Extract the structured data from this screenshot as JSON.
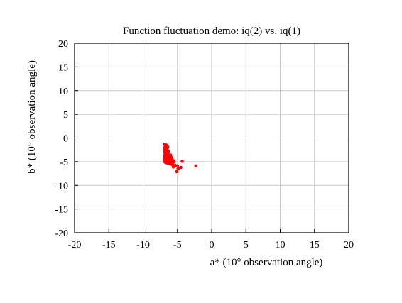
{
  "chart_data": {
    "type": "scatter",
    "title": "Function fluctuation demo: iq(2) vs. iq(1)",
    "xlabel": "a* (10° observation angle)",
    "ylabel": "b* (10° observation angle)",
    "xlim": [
      -20,
      20
    ],
    "ylim": [
      -20,
      20
    ],
    "xticks": [
      "-20",
      "-15",
      "-10",
      "-5",
      "0",
      "5",
      "10",
      "15",
      "20"
    ],
    "yticks": [
      "20",
      "15",
      "10",
      "5",
      "0",
      "-5",
      "-10",
      "-15",
      "-20"
    ],
    "grid": true,
    "legend": "none",
    "marker_color": "#ff0000",
    "series": [
      {
        "x": [
          -6.9,
          -6.8,
          -6.7,
          -6.6,
          -6.5,
          -6.4,
          -6.8,
          -6.7,
          -6.6,
          -6.5,
          -6.9,
          -6.8,
          -6.7,
          -6.6,
          -6.5,
          -6.4,
          -6.3,
          -6.9,
          -6.8,
          -6.7,
          -6.6,
          -6.5,
          -6.4,
          -6.8,
          -6.7,
          -6.6,
          -6.5,
          -6.4,
          -6.9,
          -6.7,
          -6.5,
          -6.3,
          -6.8,
          -6.6,
          -6.4,
          -6.2,
          -6.9,
          -6.7,
          -6.5,
          -6.3,
          -6.1,
          -6.8,
          -6.6,
          -6.4,
          -6.2,
          -6.0,
          -6.7,
          -6.5,
          -6.3,
          -6.1,
          -5.9,
          -6.6,
          -6.4,
          -6.2,
          -6.0,
          -5.8,
          -6.5,
          -6.3,
          -6.1,
          -5.9,
          -5.7,
          -6.4,
          -6.2,
          -6.0,
          -5.8,
          -6.3,
          -6.1,
          -5.9,
          -5.7,
          -5.5,
          -5.3,
          -5.0,
          -4.5,
          -4.3,
          -4.9,
          -5.1,
          -5.6,
          -2.3
        ],
        "y": [
          -1.3,
          -1.4,
          -1.6,
          -1.5,
          -1.7,
          -1.9,
          -1.9,
          -2.0,
          -2.1,
          -2.2,
          -2.3,
          -2.4,
          -2.5,
          -2.6,
          -2.4,
          -2.7,
          -2.8,
          -2.9,
          -3.0,
          -3.1,
          -3.0,
          -3.2,
          -3.3,
          -3.4,
          -3.5,
          -3.6,
          -3.7,
          -3.8,
          -3.9,
          -4.0,
          -4.1,
          -4.2,
          -4.3,
          -4.4,
          -4.5,
          -4.6,
          -4.7,
          -4.8,
          -4.9,
          -5.0,
          -4.4,
          -5.1,
          -5.2,
          -5.3,
          -4.2,
          -3.6,
          -3.2,
          -3.4,
          -3.6,
          -3.8,
          -4.1,
          -4.6,
          -4.8,
          -5.0,
          -3.9,
          -4.3,
          -4.9,
          -5.2,
          -5.4,
          -5.5,
          -4.7,
          -4.0,
          -4.4,
          -4.8,
          -5.0,
          -5.3,
          -5.1,
          -5.5,
          -5.6,
          -5.0,
          -5.8,
          -5.9,
          -6.2,
          -4.9,
          -6.5,
          -7.1,
          -6.1,
          -5.9
        ]
      }
    ]
  }
}
